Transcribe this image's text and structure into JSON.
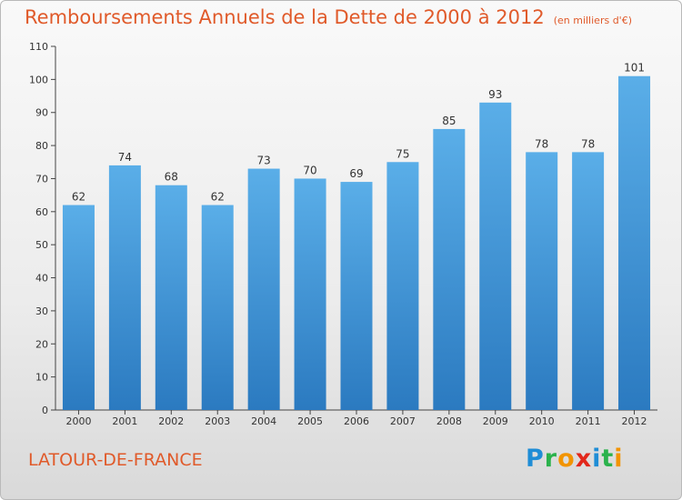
{
  "header": {
    "title": "Remboursements Annuels de la Dette de 2000 à 2012",
    "unit": "(en milliers d'€)"
  },
  "footer": {
    "commune": "LATOUR-DE-FRANCE",
    "logo_letters": [
      "P",
      "r",
      "o",
      "x",
      "i",
      "t",
      "i"
    ],
    "logo_colors": [
      "#1f8dd6",
      "#2bb24c",
      "#f29400",
      "#e2271b",
      "#1f8dd6",
      "#2bb24c",
      "#f29400"
    ]
  },
  "colors": {
    "bar_top": "#5aaee8",
    "bar_bottom": "#2b7ac0",
    "title": "#e05a2a",
    "axis": "#444444"
  },
  "chart_data": {
    "type": "bar",
    "title": "Remboursements Annuels de la Dette de 2000 à 2012",
    "subtitle": "(en milliers d'€)",
    "categories": [
      "2000",
      "2001",
      "2002",
      "2003",
      "2004",
      "2005",
      "2006",
      "2007",
      "2008",
      "2009",
      "2010",
      "2011",
      "2012"
    ],
    "values": [
      62,
      74,
      68,
      62,
      73,
      70,
      69,
      75,
      85,
      93,
      78,
      78,
      101
    ],
    "ylim": [
      0,
      110
    ],
    "yticks": [
      0,
      10,
      20,
      30,
      40,
      50,
      60,
      70,
      80,
      90,
      100,
      110
    ],
    "grid": false,
    "legend": "none"
  }
}
